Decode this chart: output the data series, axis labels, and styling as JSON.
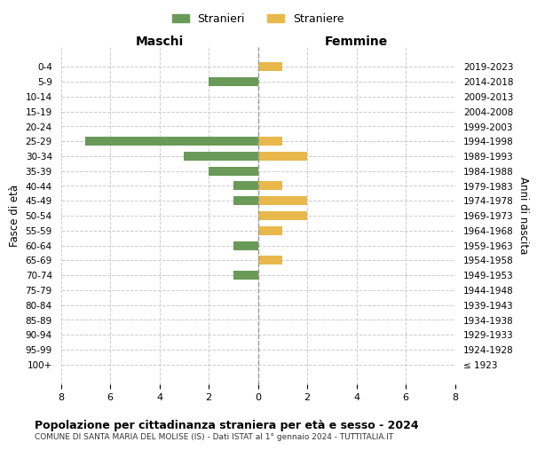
{
  "age_groups": [
    "100+",
    "95-99",
    "90-94",
    "85-89",
    "80-84",
    "75-79",
    "70-74",
    "65-69",
    "60-64",
    "55-59",
    "50-54",
    "45-49",
    "40-44",
    "35-39",
    "30-34",
    "25-29",
    "20-24",
    "15-19",
    "10-14",
    "5-9",
    "0-4"
  ],
  "birth_years": [
    "≤ 1923",
    "1924-1928",
    "1929-1933",
    "1934-1938",
    "1939-1943",
    "1944-1948",
    "1949-1953",
    "1954-1958",
    "1959-1963",
    "1964-1968",
    "1969-1973",
    "1974-1978",
    "1979-1983",
    "1984-1988",
    "1989-1993",
    "1994-1998",
    "1999-2003",
    "2004-2008",
    "2009-2013",
    "2014-2018",
    "2019-2023"
  ],
  "maschi": [
    0,
    0,
    0,
    0,
    0,
    0,
    1,
    0,
    1,
    0,
    0,
    1,
    1,
    2,
    3,
    7,
    0,
    0,
    0,
    2,
    0
  ],
  "femmine": [
    0,
    0,
    0,
    0,
    0,
    0,
    0,
    1,
    0,
    1,
    2,
    2,
    1,
    0,
    2,
    1,
    0,
    0,
    0,
    0,
    1
  ],
  "color_maschi": "#6a9a58",
  "color_femmine": "#e8b84b",
  "title": "Popolazione per cittadinanza straniera per età e sesso - 2024",
  "subtitle": "COMUNE DI SANTA MARIA DEL MOLISE (IS) - Dati ISTAT al 1° gennaio 2024 - TUTTITALIA.IT",
  "label_maschi": "Stranieri",
  "label_femmine": "Straniere",
  "xlabel_left": "Maschi",
  "xlabel_right": "Femmine",
  "ylabel_left": "Fasce di età",
  "ylabel_right": "Anni di nascita",
  "xlim": 8,
  "background_color": "#ffffff",
  "grid_color": "#cccccc"
}
